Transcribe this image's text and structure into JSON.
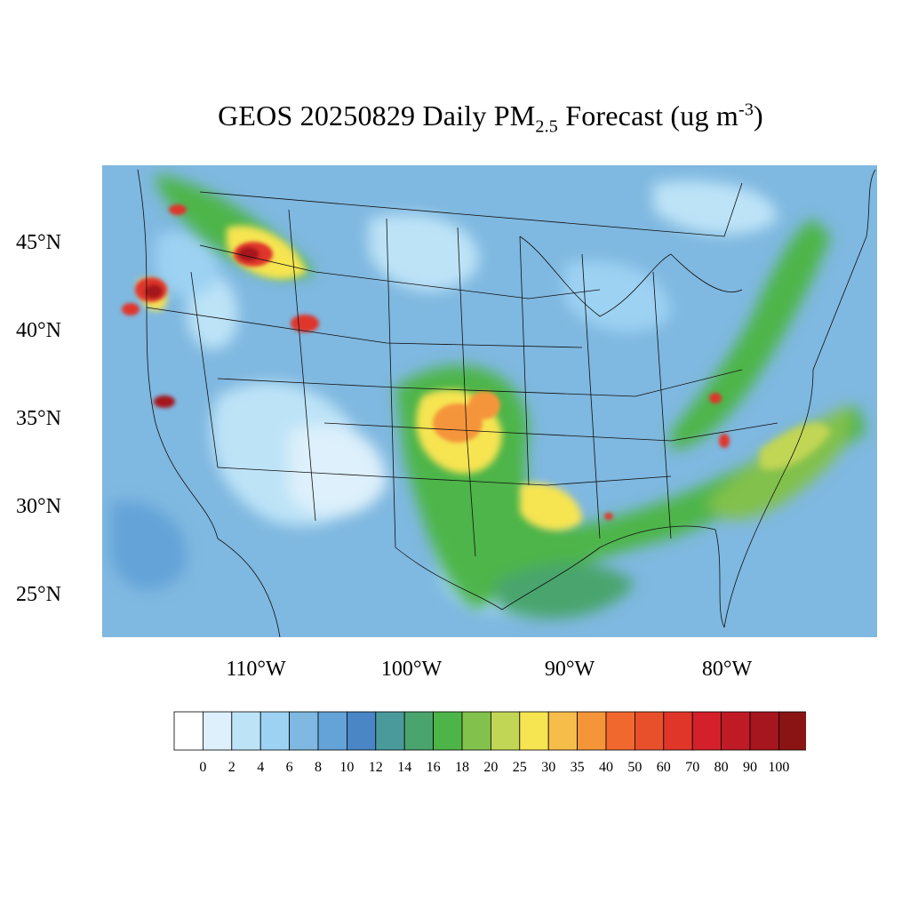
{
  "title": {
    "main": "GEOS 20250829 Daily PM",
    "subscript": "2.5",
    "rest": " Forecast (ug m",
    "superscript": "-3",
    "end": ")"
  },
  "map": {
    "lat_labels": [
      "45°N",
      "40°N",
      "35°N",
      "30°N",
      "25°N"
    ],
    "lon_labels": [
      "110°W",
      "100°W",
      "90°W",
      "80°W"
    ],
    "lat_values": [
      45,
      40,
      35,
      30,
      25
    ],
    "lon_values": [
      -110,
      -100,
      -90,
      -80
    ],
    "background_color": "#7fb8e0"
  },
  "colorbar": {
    "labels": [
      "0",
      "2",
      "4",
      "6",
      "8",
      "10",
      "12",
      "14",
      "16",
      "18",
      "20",
      "25",
      "30",
      "35",
      "40",
      "50",
      "60",
      "70",
      "80",
      "90",
      "100"
    ],
    "colors": [
      "#ffffff",
      "#ddf0fb",
      "#bde3f7",
      "#9dd2f3",
      "#7fb8e0",
      "#64a3d8",
      "#4a86c5",
      "#4a9a9c",
      "#4aa46d",
      "#4db548",
      "#82c14c",
      "#c2d655",
      "#f6e451",
      "#f7bd4a",
      "#f5953a",
      "#f1682e",
      "#e8502c",
      "#e0362a",
      "#d3202b",
      "#bf1b26",
      "#a5161f",
      "#8a1414"
    ]
  }
}
